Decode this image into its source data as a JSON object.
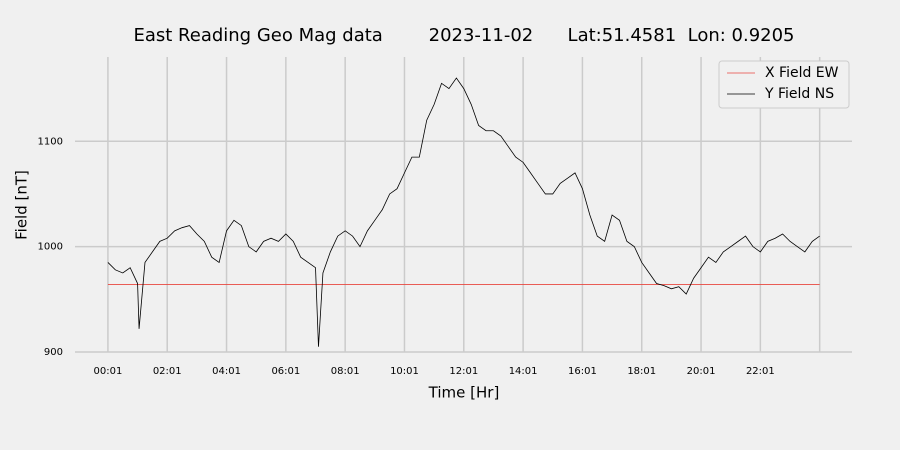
{
  "chart_data": {
    "type": "line",
    "title": "East Reading Geo Mag data        2023-11-02      Lat:51.4581  Lon: 0.9205",
    "x_label": "Time  [Hr]",
    "y_label": "Field  [nT]",
    "xlim": [
      -1.11,
      25.09
    ],
    "ylim": [
      900,
      1180
    ],
    "xticks": [
      {
        "value": 0,
        "label": "00:01"
      },
      {
        "value": 2,
        "label": "02:01"
      },
      {
        "value": 4,
        "label": "04:01"
      },
      {
        "value": 6,
        "label": "06:01"
      },
      {
        "value": 8,
        "label": "08:01"
      },
      {
        "value": 10,
        "label": "10:01"
      },
      {
        "value": 12,
        "label": "12:01"
      },
      {
        "value": 14,
        "label": "14:01"
      },
      {
        "value": 16,
        "label": "16:01"
      },
      {
        "value": 18,
        "label": "18:01"
      },
      {
        "value": 20,
        "label": "20:01"
      },
      {
        "value": 22,
        "label": "22:01"
      },
      {
        "value": 24,
        "label": null
      }
    ],
    "yticks": [
      900,
      1000,
      1100
    ],
    "grid": true,
    "legend": "upper right",
    "series": [
      {
        "name": "X Field EW",
        "color": "#e8473f",
        "x": [
          0,
          24
        ],
        "values": [
          964,
          964
        ]
      },
      {
        "name": "Y Field NS",
        "color": "#000000",
        "x": [
          0,
          0.25,
          0.5,
          0.75,
          1,
          1.05,
          1.25,
          1.5,
          1.75,
          2,
          2.25,
          2.5,
          2.75,
          3,
          3.25,
          3.5,
          3.75,
          4,
          4.25,
          4.5,
          4.75,
          5,
          5.25,
          5.5,
          5.75,
          6,
          6.25,
          6.5,
          6.75,
          7,
          7.1,
          7.25,
          7.5,
          7.75,
          8,
          8.25,
          8.5,
          8.75,
          9,
          9.25,
          9.5,
          9.75,
          10,
          10.25,
          10.5,
          10.75,
          11,
          11.25,
          11.5,
          11.75,
          12,
          12.25,
          12.5,
          12.75,
          13,
          13.25,
          13.5,
          13.75,
          14,
          14.25,
          14.5,
          14.75,
          15,
          15.25,
          15.5,
          15.75,
          16,
          16.25,
          16.5,
          16.75,
          17,
          17.25,
          17.5,
          17.75,
          18,
          18.25,
          18.5,
          18.75,
          19,
          19.25,
          19.5,
          19.75,
          20,
          20.25,
          20.5,
          20.75,
          21,
          21.25,
          21.5,
          21.75,
          22,
          22.25,
          22.5,
          22.75,
          23,
          23.25,
          23.5,
          23.75,
          24
        ],
        "values": [
          985,
          978,
          975,
          980,
          965,
          922,
          985,
          995,
          1005,
          1008,
          1015,
          1018,
          1020,
          1012,
          1005,
          990,
          985,
          1015,
          1025,
          1020,
          1000,
          995,
          1005,
          1008,
          1005,
          1012,
          1005,
          990,
          985,
          980,
          905,
          975,
          995,
          1010,
          1015,
          1010,
          1000,
          1015,
          1025,
          1035,
          1050,
          1055,
          1070,
          1085,
          1085,
          1120,
          1135,
          1155,
          1150,
          1160,
          1150,
          1135,
          1115,
          1110,
          1110,
          1105,
          1095,
          1085,
          1080,
          1070,
          1060,
          1050,
          1050,
          1060,
          1065,
          1070,
          1055,
          1030,
          1010,
          1005,
          1030,
          1025,
          1005,
          1000,
          985,
          975,
          965,
          963,
          960,
          962,
          955,
          970,
          980,
          990,
          985,
          995,
          1000,
          1005,
          1010,
          1000,
          995,
          1005,
          1008,
          1012,
          1005,
          1000,
          995,
          1005,
          1010
        ]
      }
    ]
  }
}
